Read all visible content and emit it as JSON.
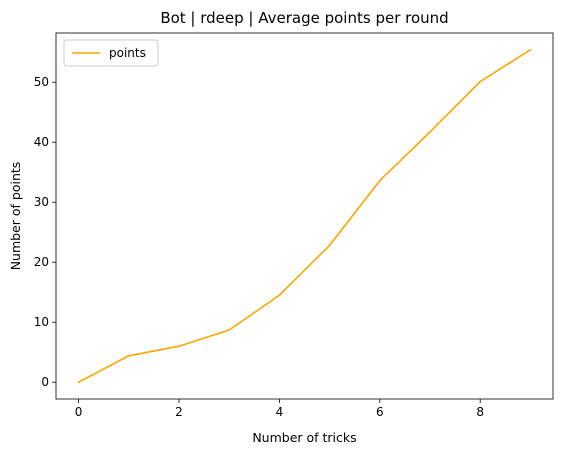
{
  "chart_data": {
    "type": "line",
    "title": "Bot | rdeep | Average points per round",
    "xlabel": "Number of tricks",
    "ylabel": "Number of points",
    "xlim": [
      -0.45,
      9.45
    ],
    "ylim": [
      -2.8,
      58.2
    ],
    "xticks": [
      0,
      2,
      4,
      6,
      8
    ],
    "yticks": [
      0,
      10,
      20,
      30,
      40,
      50
    ],
    "grid": false,
    "legend_position": "top-left",
    "series": [
      {
        "name": "points",
        "color": "#ffa500",
        "x": [
          0,
          1,
          2,
          3,
          4,
          5,
          6,
          7,
          8,
          9
        ],
        "values": [
          0,
          4.4,
          6.0,
          8.7,
          14.5,
          22.8,
          33.6,
          41.7,
          50.1,
          55.4
        ]
      }
    ]
  }
}
